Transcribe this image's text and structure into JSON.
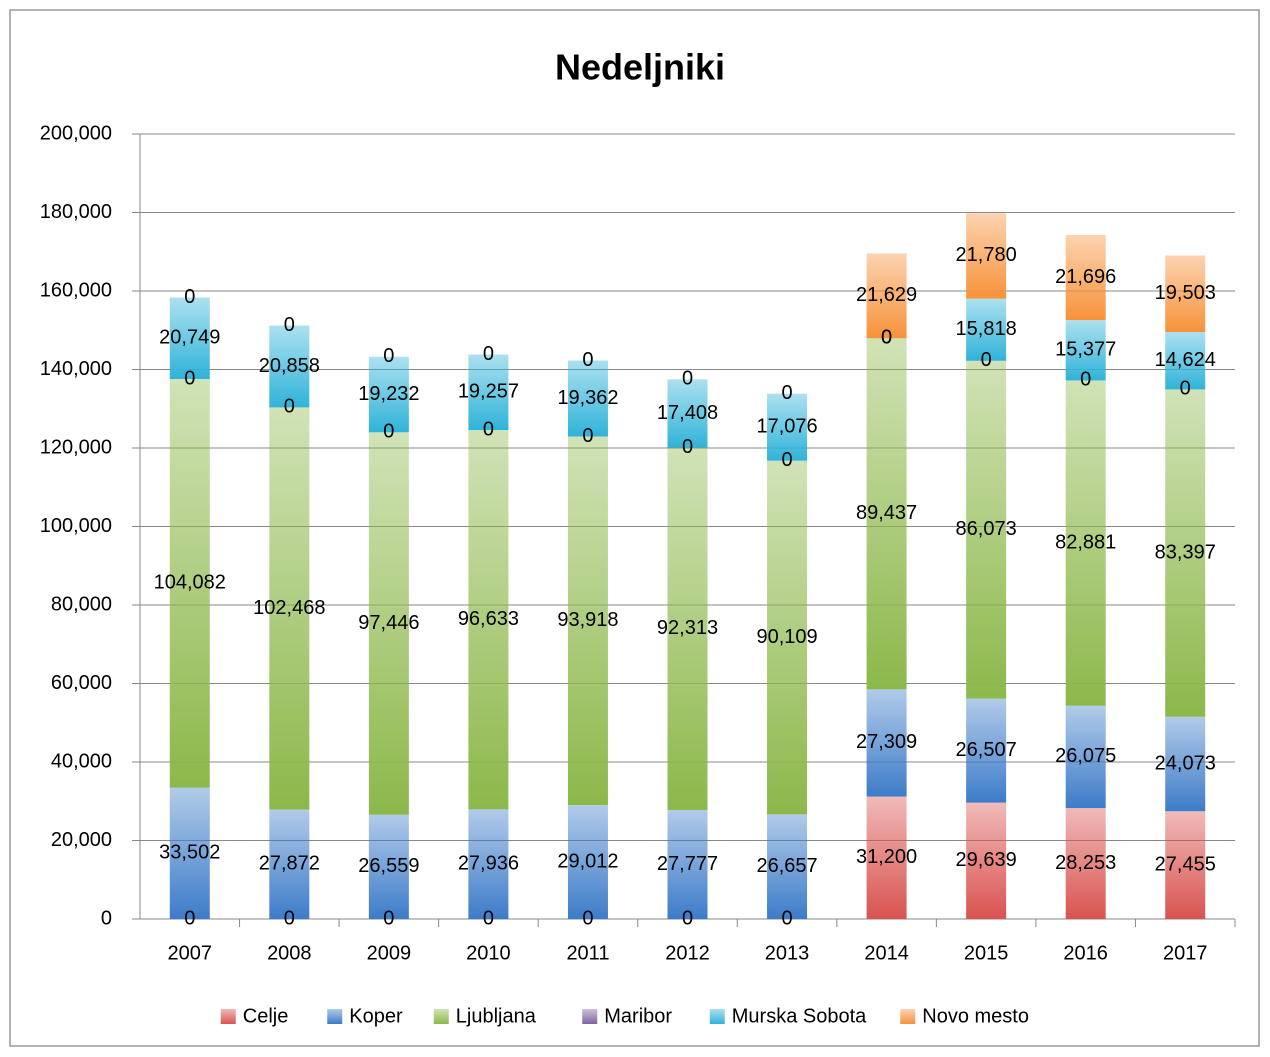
{
  "chart_data": {
    "type": "stacked_bar",
    "title": "Nedeljniki",
    "categories": [
      "2007",
      "2008",
      "2009",
      "2010",
      "2011",
      "2012",
      "2013",
      "2014",
      "2015",
      "2016",
      "2017"
    ],
    "series": [
      {
        "name": "Celje",
        "color": "#d9534f",
        "values": [
          0,
          0,
          0,
          0,
          0,
          0,
          0,
          31200,
          29639,
          28253,
          27455
        ],
        "value_labels": [
          "0",
          "0",
          "0",
          "0",
          "0",
          "0",
          "0",
          "31,200",
          "29,639",
          "28,253",
          "27,455"
        ]
      },
      {
        "name": "Koper",
        "color": "#3d7cc9",
        "values": [
          33502,
          27872,
          26559,
          27936,
          29012,
          27777,
          26657,
          27309,
          26507,
          26075,
          24073
        ],
        "value_labels": [
          "33,502",
          "27,872",
          "26,559",
          "27,936",
          "29,012",
          "27,777",
          "26,657",
          "27,309",
          "26,507",
          "26,075",
          "24,073"
        ]
      },
      {
        "name": "Ljubljana",
        "color": "#8cb84a",
        "values": [
          104082,
          102468,
          97446,
          96633,
          93918,
          92313,
          90109,
          89437,
          86073,
          82881,
          83397
        ],
        "value_labels": [
          "104,082",
          "102,468",
          "97,446",
          "96,633",
          "93,918",
          "92,313",
          "90,109",
          "89,437",
          "86,073",
          "82,881",
          "83,397"
        ]
      },
      {
        "name": "Maribor",
        "color": "#8064a2",
        "values": [
          0,
          0,
          0,
          0,
          0,
          0,
          0,
          0,
          0,
          0,
          0
        ],
        "value_labels": [
          "0",
          "0",
          "0",
          "0",
          "0",
          "0",
          "0",
          "0",
          "0",
          "0",
          "0"
        ]
      },
      {
        "name": "Murska Sobota",
        "color": "#2fb3d9",
        "values": [
          20749,
          20858,
          19232,
          19257,
          19362,
          17408,
          17076,
          0,
          15818,
          15377,
          14624
        ],
        "value_labels": [
          "20,749",
          "20,858",
          "19,232",
          "19,257",
          "19,362",
          "17,408",
          "17,076",
          "0",
          "15,818",
          "15,377",
          "14,624"
        ]
      },
      {
        "name": "Novo mesto",
        "color": "#f7923a",
        "values": [
          0,
          0,
          0,
          0,
          0,
          0,
          0,
          21629,
          21780,
          21696,
          19503
        ],
        "value_labels": [
          "0",
          "0",
          "0",
          "0",
          "0",
          "0",
          "0",
          "21,629",
          "21,780",
          "21,696",
          "19,503"
        ]
      }
    ],
    "ylim": [
      0,
      200000
    ],
    "yticks": [
      0,
      {
        "value": 20000,
        "label": "20,000"
      },
      {
        "value": 40000,
        "label": "40,000"
      },
      {
        "value": 60000,
        "label": "60,000"
      },
      {
        "value": 80000,
        "label": "80,000"
      },
      {
        "value": 100000,
        "label": "100,000"
      },
      {
        "value": 120000,
        "label": "120,000"
      },
      {
        "value": 140000,
        "label": "140,000"
      },
      {
        "value": 160000,
        "label": "160,000"
      },
      {
        "value": 180000,
        "label": "180,000"
      },
      {
        "value": 200000,
        "label": "200,000"
      }
    ],
    "grid": true,
    "legend": "bottom"
  }
}
